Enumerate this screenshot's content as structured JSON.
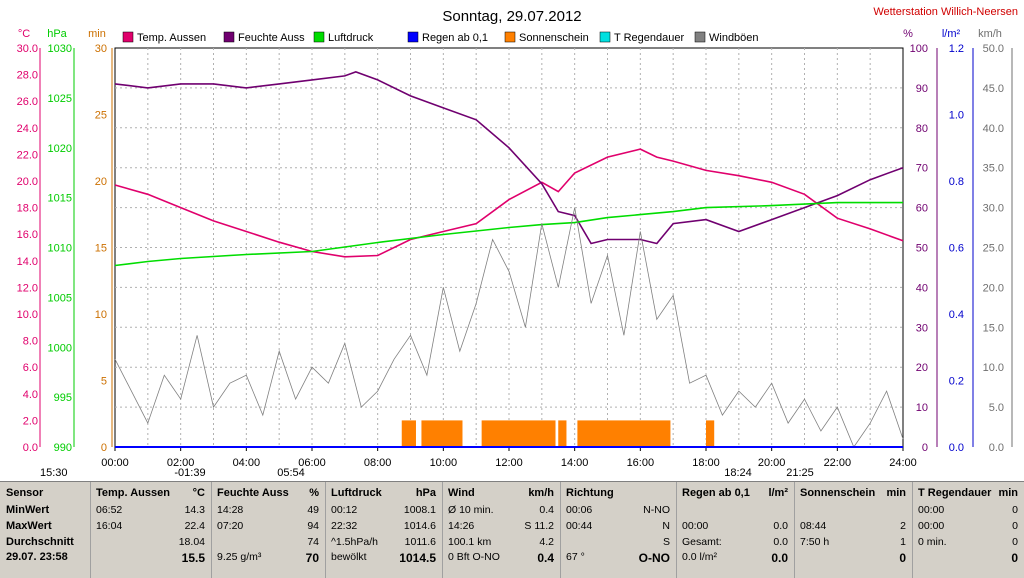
{
  "header": {
    "title": "Sonntag, 29.07.2012",
    "station": "Wetterstation Willich-Neersen"
  },
  "units": {
    "temp": "°C",
    "press": "hPa",
    "min": "min",
    "percent": "%",
    "rain": "l/m²",
    "wind": "km/h"
  },
  "legend": [
    {
      "label": "Temp. Aussen",
      "color": "#e0006c"
    },
    {
      "label": "Feuchte Auss",
      "color": "#700070"
    },
    {
      "label": "Luftdruck",
      "color": "#00dd00"
    },
    {
      "label": "Regen ab 0,1",
      "color": "#0000ff"
    },
    {
      "label": "Sonnenschein",
      "color": "#ff8000"
    },
    {
      "label": "T Regendauer",
      "color": "#00e0e0"
    },
    {
      "label": "Windböen",
      "color": "#808080"
    }
  ],
  "axes": {
    "temp_ticks": [
      "30.0",
      "28.0",
      "26.0",
      "24.0",
      "22.0",
      "20.0",
      "18.0",
      "16.0",
      "14.0",
      "12.0",
      "10.0",
      "8.0",
      "6.0",
      "4.0",
      "2.0",
      "0.0"
    ],
    "press_ticks": [
      "1030",
      "1025",
      "1020",
      "1015",
      "1010",
      "1005",
      "1000",
      "995",
      "990"
    ],
    "min_ticks": [
      "30",
      "25",
      "20",
      "15",
      "10",
      "5",
      "0"
    ],
    "pct_ticks": [
      "100",
      "90",
      "80",
      "70",
      "60",
      "50",
      "40",
      "30",
      "20",
      "10",
      "0"
    ],
    "rain_ticks": [
      "1.2",
      "1.0",
      "0.8",
      "0.6",
      "0.4",
      "0.2",
      "0.0"
    ],
    "wind_ticks": [
      "50.0",
      "45.0",
      "40.0",
      "35.0",
      "30.0",
      "25.0",
      "20.0",
      "15.0",
      "10.0",
      "5.0",
      "0.0"
    ],
    "x_ticks": [
      "00:00",
      "02:00",
      "04:00",
      "06:00",
      "08:00",
      "10:00",
      "12:00",
      "14:00",
      "16:00",
      "18:00",
      "20:00",
      "22:00",
      "24:00"
    ]
  },
  "sun_markers": [
    "15:30",
    "-01:39",
    "05:54",
    "18:24",
    "21:25"
  ],
  "chart_data": {
    "type": "line",
    "x_range": [
      "00:00",
      "24:00"
    ],
    "series": [
      {
        "name": "Temp. Aussen",
        "unit": "°C",
        "color": "#e0006c",
        "x": [
          "00:00",
          "01:00",
          "02:00",
          "03:00",
          "04:00",
          "05:00",
          "06:00",
          "07:00",
          "08:00",
          "09:00",
          "10:00",
          "11:00",
          "12:00",
          "13:00",
          "13:30",
          "14:00",
          "15:00",
          "16:00",
          "16:30",
          "17:00",
          "18:00",
          "19:00",
          "20:00",
          "21:00",
          "22:00",
          "23:00",
          "24:00"
        ],
        "values": [
          19.7,
          19.0,
          18.0,
          17.0,
          16.2,
          15.4,
          14.7,
          14.3,
          14.4,
          15.6,
          16.2,
          16.8,
          18.6,
          19.9,
          19.2,
          20.6,
          21.8,
          22.4,
          21.8,
          21.5,
          20.8,
          20.4,
          19.9,
          19.0,
          17.2,
          16.4,
          15.5
        ]
      },
      {
        "name": "Feuchte Auss",
        "unit": "%",
        "color": "#700070",
        "x": [
          "00:00",
          "01:00",
          "02:00",
          "03:00",
          "04:00",
          "05:00",
          "06:00",
          "07:00",
          "07:20",
          "08:00",
          "09:00",
          "10:00",
          "11:00",
          "12:00",
          "13:00",
          "13:30",
          "14:00",
          "14:30",
          "15:00",
          "16:00",
          "16:30",
          "17:00",
          "18:00",
          "19:00",
          "20:00",
          "21:00",
          "22:00",
          "23:00",
          "24:00"
        ],
        "values": [
          91,
          90,
          91,
          91,
          90,
          91,
          92,
          93,
          94,
          92,
          88,
          85,
          82,
          75,
          66,
          59,
          58,
          51,
          52,
          52,
          51,
          56,
          57,
          54,
          57,
          60,
          63,
          67,
          70
        ]
      },
      {
        "name": "Luftdruck",
        "unit": "hPa",
        "color": "#00dd00",
        "x": [
          "00:00",
          "01:00",
          "02:00",
          "04:00",
          "06:00",
          "08:00",
          "10:00",
          "12:00",
          "13:00",
          "14:00",
          "15:00",
          "16:00",
          "17:00",
          "18:00",
          "20:00",
          "22:00",
          "24:00"
        ],
        "values": [
          1008.2,
          1008.6,
          1008.9,
          1009.3,
          1009.6,
          1010.5,
          1011.3,
          1012.0,
          1012.3,
          1012.5,
          1013.0,
          1013.3,
          1013.6,
          1014.0,
          1014.2,
          1014.5,
          1014.5
        ]
      },
      {
        "name": "Windböen",
        "unit": "km/h",
        "color": "#808080",
        "x": [
          "00:00",
          "00:30",
          "01:00",
          "01:30",
          "02:00",
          "02:30",
          "03:00",
          "03:30",
          "04:00",
          "04:30",
          "05:00",
          "05:30",
          "06:00",
          "06:30",
          "07:00",
          "07:30",
          "08:00",
          "08:30",
          "09:00",
          "09:30",
          "10:00",
          "10:30",
          "11:00",
          "11:30",
          "12:00",
          "12:30",
          "13:00",
          "13:30",
          "14:00",
          "14:30",
          "15:00",
          "15:30",
          "16:00",
          "16:30",
          "17:00",
          "17:30",
          "18:00",
          "18:30",
          "19:00",
          "19:30",
          "20:00",
          "20:30",
          "21:00",
          "21:30",
          "22:00",
          "22:30",
          "23:00",
          "23:30",
          "24:00"
        ],
        "values": [
          11,
          7,
          3,
          9,
          6,
          14,
          5,
          8,
          9,
          4,
          12,
          6,
          10,
          8,
          13,
          5,
          7,
          11,
          14,
          9,
          20,
          12,
          18,
          26,
          22,
          15,
          28,
          20,
          30,
          18,
          24,
          14,
          27,
          16,
          19,
          8,
          9,
          4,
          7,
          5,
          8,
          3,
          6,
          2,
          5,
          0,
          3,
          7,
          1
        ]
      },
      {
        "name": "Sonnenschein",
        "unit": "min",
        "color": "#ff8000",
        "x": [
          "08:44",
          "09:20",
          "11:10",
          "13:30",
          "14:05",
          "18:00"
        ],
        "values": [
          2,
          2,
          2,
          1,
          2,
          1
        ]
      },
      {
        "name": "T Regendauer",
        "unit": "min",
        "color": "#00e0e0",
        "x": [
          "00:00",
          "24:00"
        ],
        "values": [
          0,
          0
        ]
      },
      {
        "name": "Regen ab 0,1",
        "unit": "l/m²",
        "color": "#0000ff",
        "x": [
          "00:00",
          "24:00"
        ],
        "values": [
          0,
          0
        ]
      }
    ],
    "grid": true
  },
  "stats": {
    "sensor": {
      "h": "Sensor",
      "r1": "MinWert",
      "r2": "MaxWert",
      "r3": "Durchschnitt",
      "r4": "29.07. 23:58"
    },
    "temp": {
      "h": "Temp. Aussen",
      "u": "°C",
      "r1t": "06:52",
      "r1v": "14.3",
      "r2t": "16:04",
      "r2v": "22.4",
      "r3v": "18.04",
      "r4v": "15.5"
    },
    "hum": {
      "h": "Feuchte Auss",
      "u": "%",
      "r1t": "14:28",
      "r1v": "49",
      "r2t": "07:20",
      "r2v": "94",
      "r3v": "74",
      "r4t": "9.25 g/m³",
      "r4v": "70"
    },
    "press": {
      "h": "Luftdruck",
      "u": "hPa",
      "r1t": "00:12",
      "r1v": "1008.1",
      "r2t": "22:32",
      "r2v": "1014.6",
      "r3t": "^1.5hPa/h",
      "r3v": "1011.6",
      "r4t": "bewölkt",
      "r4v": "1014.5"
    },
    "wind": {
      "h": "Wind",
      "u": "km/h",
      "r1t": "Ø 10 min.",
      "r1v": "0.4",
      "r2t": "14:26",
      "r2v": "S 11.2",
      "r3t": "100.1 km",
      "r3v": "4.2",
      "r4t": "0 Bft O-NO",
      "r4v": "0.4"
    },
    "dir": {
      "h": "Richtung",
      "r1t": "00:06",
      "r1v": "N-NO",
      "r2t": "00:44",
      "r2v": "N",
      "r3v": "S",
      "r4t": "67 °",
      "r4v": "O-NO"
    },
    "rain": {
      "h": "Regen ab 0,1",
      "u": "l/m²",
      "r2t": "00:00",
      "r2v": "0.0",
      "r3t": "Gesamt:",
      "r3v": "0.0",
      "r4t": "0.0 l/m²",
      "r4v": "0.0"
    },
    "sun": {
      "h": "Sonnenschein",
      "u": "min",
      "r2t": "08:44",
      "r2v": "2",
      "r3t": "7:50 h",
      "r3v": "1",
      "r4v": "0"
    },
    "raindur": {
      "h": "T Regendauer",
      "u": "min",
      "r1t": "00:00",
      "r1v": "0",
      "r2t": "00:00",
      "r2v": "0",
      "r3t": "0 min.",
      "r3v": "0",
      "r4v": "0"
    }
  }
}
